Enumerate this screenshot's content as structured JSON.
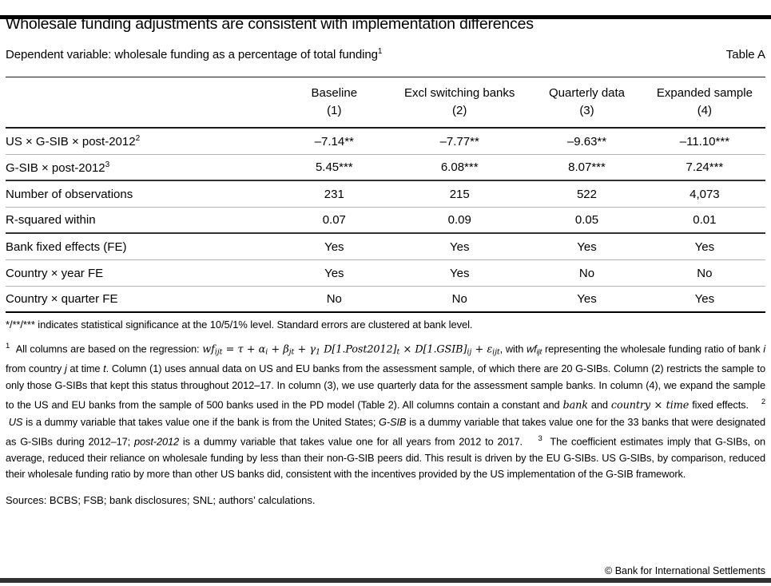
{
  "header": {
    "title": "Wholesale funding adjustments are consistent with implementation differences",
    "subtitle": "Dependent variable: wholesale funding as a percentage of total funding",
    "subtitle_footnote_marker": "1",
    "table_label": "Table A"
  },
  "table": {
    "columns": [
      {
        "label": "Baseline",
        "number": "(1)"
      },
      {
        "label": "Excl switching banks",
        "number": "(2)"
      },
      {
        "label": "Quarterly data",
        "number": "(3)"
      },
      {
        "label": "Expanded sample",
        "number": "(4)"
      }
    ],
    "rows": [
      {
        "label": "US × G-SIB × post-2012",
        "footnote_marker": "2",
        "values": [
          "–7.14**",
          "–7.77**",
          "–9.63**",
          "–11.10***"
        ],
        "separator": "light"
      },
      {
        "label": "G-SIB × post-2012",
        "footnote_marker": "3",
        "values": [
          "5.45***",
          "6.08***",
          "8.07***",
          "7.24***"
        ],
        "separator": "dark"
      },
      {
        "label": "Number of observations",
        "footnote_marker": "",
        "values": [
          "231",
          "215",
          "522",
          "4,073"
        ],
        "separator": "light"
      },
      {
        "label": "R-squared within",
        "footnote_marker": "",
        "values": [
          "0.07",
          "0.09",
          "0.05",
          "0.01"
        ],
        "separator": "dark"
      },
      {
        "label": "Bank fixed effects (FE)",
        "footnote_marker": "",
        "values": [
          "Yes",
          "Yes",
          "Yes",
          "Yes"
        ],
        "separator": "light"
      },
      {
        "label": "Country × year FE",
        "footnote_marker": "",
        "values": [
          "Yes",
          "Yes",
          "No",
          "No"
        ],
        "separator": "light"
      },
      {
        "label": "Country × quarter FE",
        "footnote_marker": "",
        "values": [
          "No",
          "No",
          "Yes",
          "Yes"
        ],
        "separator": "bottom"
      }
    ]
  },
  "footnotes": {
    "significance": "*/**/*** indicates statistical significance at the 10/5/1% level. Standard errors are clustered at bank level.",
    "note_segments": [
      {
        "t": "1",
        "s": "sup"
      },
      {
        "t": "  All columns are based on the regression: ",
        "s": ""
      },
      {
        "t": "wf",
        "s": "m"
      },
      {
        "t": "ijt",
        "s": "ms"
      },
      {
        "t": " = τ + α",
        "s": "m"
      },
      {
        "t": "i",
        "s": "ms"
      },
      {
        "t": " + β",
        "s": "m"
      },
      {
        "t": "jt",
        "s": "ms"
      },
      {
        "t": " + γ",
        "s": "m"
      },
      {
        "t": "1",
        "s": "ms"
      },
      {
        "t": " D[1.Post2012]",
        "s": "m"
      },
      {
        "t": "t",
        "s": "ms"
      },
      {
        "t": " × D[1.GSIB]",
        "s": "m"
      },
      {
        "t": "ij",
        "s": "ms"
      },
      {
        "t": " + ε",
        "s": "m"
      },
      {
        "t": "ijt",
        "s": "ms"
      },
      {
        "t": ", with ",
        "s": ""
      },
      {
        "t": "wf",
        "s": "i"
      },
      {
        "t": "ijt",
        "s": "is"
      },
      {
        "t": " representing the wholesale funding ratio of bank ",
        "s": ""
      },
      {
        "t": "i",
        "s": "i"
      },
      {
        "t": " from country ",
        "s": ""
      },
      {
        "t": "j",
        "s": "i"
      },
      {
        "t": " at time ",
        "s": ""
      },
      {
        "t": "t",
        "s": "i"
      },
      {
        "t": ". Column (1) uses annual data on US and EU banks from the assessment sample, of which there are 20 G-SIBs. Column (2) restricts the sample to only those G-SIBs that kept this status throughout 2012–17. In column (3), we use quarterly data for the assessment sample banks. In column (4), we expand the sample to the US and EU banks from the sample of 500 banks used in the PD model (Table 2). All columns contain a constant and ",
        "s": ""
      },
      {
        "t": "bank",
        "s": "m"
      },
      {
        "t": " and ",
        "s": ""
      },
      {
        "t": "country × time",
        "s": "m"
      },
      {
        "t": " fixed effects.    ",
        "s": ""
      },
      {
        "t": "2",
        "s": "sup"
      },
      {
        "t": "  ",
        "s": ""
      },
      {
        "t": "US",
        "s": "i"
      },
      {
        "t": " is a dummy variable that takes value one if the bank is from the United States; ",
        "s": ""
      },
      {
        "t": "G-SIB",
        "s": "i"
      },
      {
        "t": " is a dummy variable that takes value one for the 33 banks that were designated as G-SIBs during 2012–17; ",
        "s": ""
      },
      {
        "t": "post-2012",
        "s": "i"
      },
      {
        "t": " is a dummy variable that takes value one for all years from 2012 to 2017.    ",
        "s": ""
      },
      {
        "t": "3",
        "s": "sup"
      },
      {
        "t": "  The coefficient estimates imply that G-SIBs, on average, reduced their reliance on wholesale funding by less than their non-G-SIB peers did. This result is driven by the EU G-SIBs. US G-SIBs, by comparison, reduced their wholesale funding ratio by more than other US banks did, consistent with the incentives provided by the US implementation of the G-SIB framework.",
        "s": ""
      }
    ],
    "sources": "Sources: BCBS; FSB; bank disclosures; SNL; authors’ calculations."
  },
  "footer": {
    "copyright": "© Bank for International Settlements"
  },
  "colors": {
    "bar_top": "#000000",
    "bar_bottom": "#313131",
    "line_light": "#b2b2b2",
    "line_dark": "#323232",
    "text": "#000000"
  }
}
